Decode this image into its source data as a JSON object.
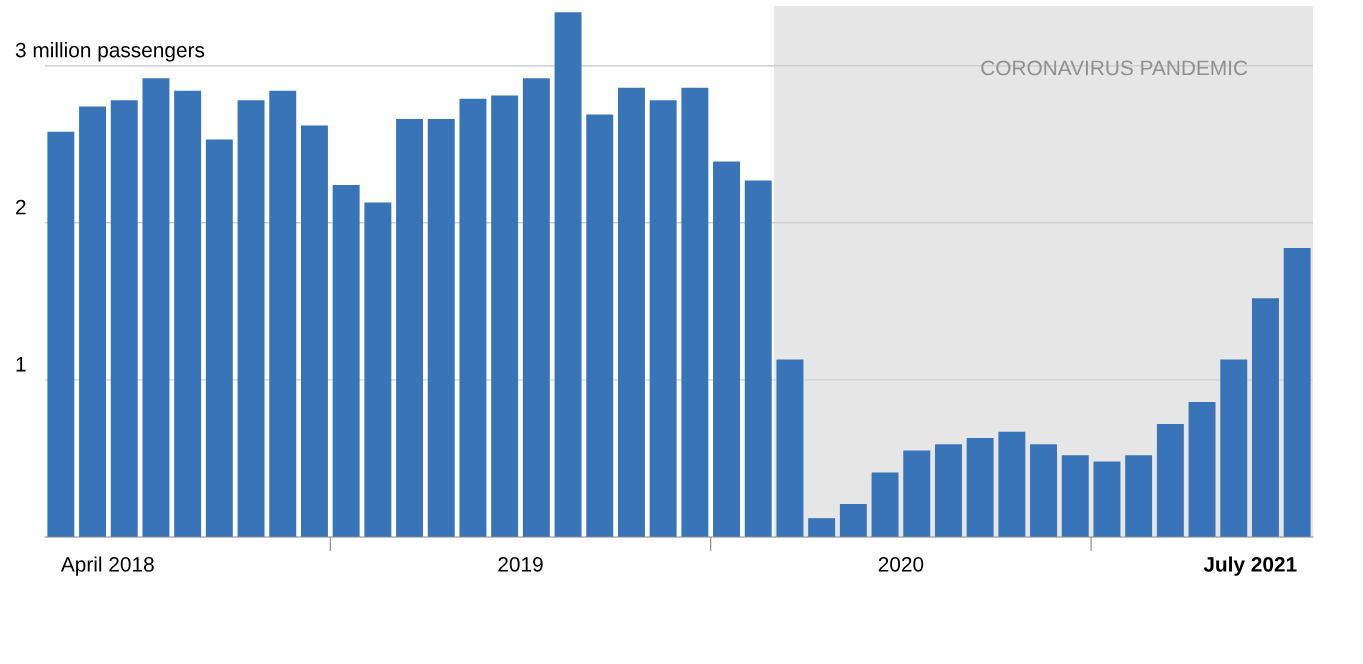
{
  "chart_data": {
    "type": "bar",
    "x": [
      "2018-04",
      "2018-05",
      "2018-06",
      "2018-07",
      "2018-08",
      "2018-09",
      "2018-10",
      "2018-11",
      "2018-12",
      "2019-01",
      "2019-02",
      "2019-03",
      "2019-04",
      "2019-05",
      "2019-06",
      "2019-07",
      "2019-08",
      "2019-09",
      "2019-10",
      "2019-11",
      "2019-12",
      "2020-01",
      "2020-02",
      "2020-03",
      "2020-04",
      "2020-05",
      "2020-06",
      "2020-07",
      "2020-08",
      "2020-09",
      "2020-10",
      "2020-11",
      "2020-12",
      "2021-01",
      "2021-02",
      "2021-03",
      "2021-04",
      "2021-05",
      "2021-06",
      "2021-07"
    ],
    "values": [
      2.58,
      2.74,
      2.78,
      2.92,
      2.84,
      2.53,
      2.78,
      2.84,
      2.62,
      2.24,
      2.13,
      2.66,
      2.66,
      2.79,
      2.81,
      2.92,
      3.34,
      2.69,
      2.86,
      2.78,
      2.86,
      2.39,
      2.27,
      1.13,
      0.12,
      0.21,
      0.41,
      0.55,
      0.59,
      0.63,
      0.67,
      0.59,
      0.52,
      0.48,
      0.52,
      0.72,
      0.86,
      1.13,
      1.52,
      1.84
    ],
    "color": "#3a74b8",
    "xlim": [
      "2018-03-16",
      "2021-07-16"
    ],
    "xticks": [
      {
        "value": "2018-04",
        "label": "April 2018"
      },
      {
        "value": "2018-12-16",
        "label": null
      },
      {
        "value": "2019-06-16",
        "label": "2019"
      },
      {
        "value": "2019-12-16",
        "label": null
      },
      {
        "value": "2020-06-16",
        "label": "2020"
      },
      {
        "value": "2020-12-16",
        "label": null
      },
      {
        "value": "2021-07",
        "label": "July 2021"
      }
    ],
    "ylim": [
      0,
      3.38
    ],
    "yticks": [
      {
        "value": 1,
        "label": "1"
      },
      {
        "value": 2,
        "label": "2"
      },
      {
        "value": 3,
        "label": "3 million passengers"
      }
    ],
    "grid": "y",
    "bands": [
      {
        "axis": "x",
        "from": "2020-02-16",
        "to": "2021-07-16",
        "label": "CORONAVIRUS PANDEMIC",
        "color": "#e6e6e6"
      }
    ]
  }
}
